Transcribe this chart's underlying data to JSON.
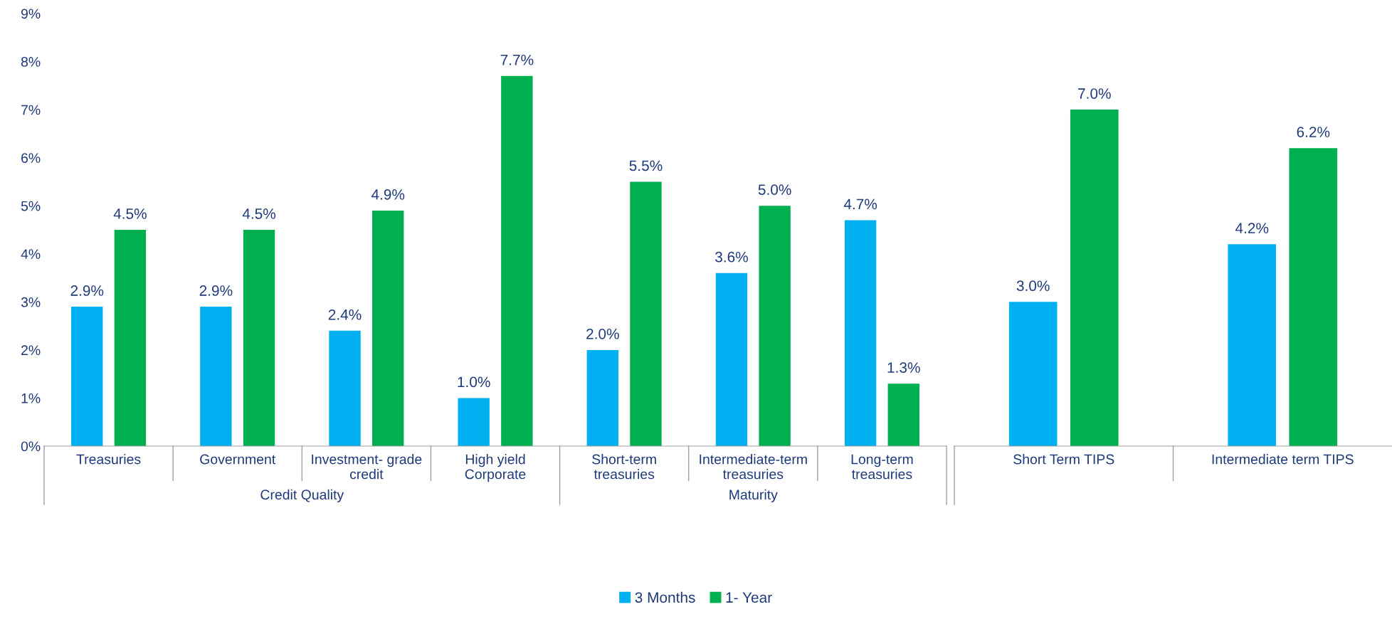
{
  "chart_data": [
    {
      "type": "bar",
      "categories": [
        "Treasuries",
        "Government",
        "Investment- grade credit",
        "High yield Corporate",
        "Short-term treasuries",
        "Intermediate-term treasuries",
        "Long-term treasuries"
      ],
      "series": [
        {
          "name": "3 Months",
          "color": "#00b0f0",
          "values": [
            2.9,
            2.9,
            2.4,
            1.0,
            2.0,
            3.6,
            4.7
          ],
          "value_labels": [
            "2.9%",
            "2.9%",
            "2.4%",
            "1.0%",
            "2.0%",
            "3.6%",
            "4.7%"
          ]
        },
        {
          "name": "1- Year",
          "color": "#00b050",
          "values": [
            4.5,
            4.5,
            4.9,
            7.7,
            5.5,
            5.0,
            1.3
          ],
          "value_labels": [
            "4.5%",
            "4.5%",
            "4.9%",
            "7.7%",
            "5.5%",
            "5.0%",
            "1.3%"
          ]
        }
      ],
      "ylim": [
        0,
        9
      ],
      "yticks": [
        {
          "value": 0,
          "label": "0%"
        },
        {
          "value": 1,
          "label": "1%"
        },
        {
          "value": 2,
          "label": "2%"
        },
        {
          "value": 3,
          "label": "3%"
        },
        {
          "value": 4,
          "label": "4%"
        },
        {
          "value": 5,
          "label": "5%"
        },
        {
          "value": 6,
          "label": "6%"
        },
        {
          "value": 7,
          "label": "7%"
        },
        {
          "value": 8,
          "label": "8%"
        },
        {
          "value": 9,
          "label": "9%"
        }
      ],
      "annotations": [
        "Credit Quality",
        "Maturity"
      ],
      "grid": false,
      "legend": "bottom"
    },
    {
      "type": "bar",
      "categories": [
        "Short Term TIPS",
        "Intermediate term TIPS"
      ],
      "series": [
        {
          "color": "#00b0f0",
          "values": [
            3.0,
            4.2
          ],
          "value_labels": [
            "3.0%",
            "4.2%"
          ]
        },
        {
          "color": "#00b050",
          "values": [
            7.0,
            6.2
          ],
          "value_labels": [
            "7.0%",
            "6.2%"
          ]
        }
      ],
      "ylim": [
        0,
        9
      ],
      "grid": false,
      "tick_labels": "x"
    }
  ]
}
